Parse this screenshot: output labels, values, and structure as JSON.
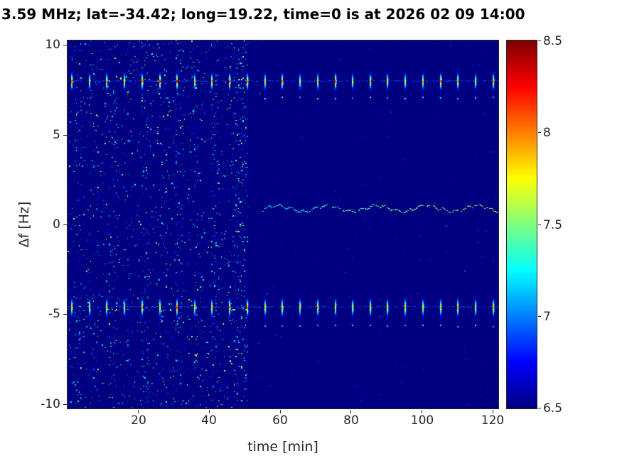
{
  "title": "3.59 MHz;  lat=-34.42; long=19.22, time=0 is at 2026 02 09 14:00",
  "chart_data": {
    "type": "heatmap",
    "title": "3.59 MHz;  lat=-34.42; long=19.22, time=0 is at 2026 02 09 14:00",
    "xlabel": "time [min]",
    "ylabel": "Δf [Hz]",
    "x_range": [
      0,
      121.5
    ],
    "y_range": [
      -10.25,
      10.25
    ],
    "xticks": [
      20,
      40,
      60,
      80,
      100,
      120
    ],
    "yticks": [
      10,
      5,
      0,
      -5,
      -10
    ],
    "xtick_labels": [
      "20",
      "40",
      "60",
      "80",
      "100",
      "120"
    ],
    "ytick_labels": [
      "10",
      "5",
      "0",
      "-5",
      "-10"
    ],
    "colorbar": {
      "min": 6.5,
      "max": 8.5,
      "ticks": [
        8.5,
        8,
        7.5,
        7,
        6.5
      ],
      "tick_labels": [
        "8.5",
        "8",
        "7.5",
        "7",
        "6.5"
      ],
      "colormap": "jet",
      "position": "right"
    },
    "background_value": 6.5,
    "grid": false,
    "noise": {
      "seed": 1337,
      "boundary_min": 50.7,
      "left_density": 0.08,
      "right_density": 0.011,
      "left_max_excess": 1.15,
      "right_max_excess": 0.4,
      "stripes": [
        {
          "t": 3,
          "w": 1.0,
          "mult": 2.0
        },
        {
          "t": 8,
          "w": 0.8,
          "mult": 1.6
        },
        {
          "t": 12.5,
          "w": 1.2,
          "mult": 2.0
        },
        {
          "t": 17,
          "w": 0.8,
          "mult": 1.5
        },
        {
          "t": 22,
          "w": 1.2,
          "mult": 2.0
        },
        {
          "t": 27,
          "w": 0.8,
          "mult": 1.6
        },
        {
          "t": 31.5,
          "w": 1.2,
          "mult": 2.2
        },
        {
          "t": 36,
          "w": 0.8,
          "mult": 1.5
        },
        {
          "t": 41.5,
          "w": 1.3,
          "mult": 2.2
        },
        {
          "t": 45.5,
          "w": 0.9,
          "mult": 1.8
        },
        {
          "t": 48.8,
          "w": 2.2,
          "mult": 3.0
        }
      ]
    },
    "bands": [
      {
        "name": "upper-pulse-band",
        "center_hz": 8.0,
        "pulse_half_hz": 0.6,
        "baseline_value": 6.9,
        "echo_hz": 7.1,
        "echo_after_min": 52,
        "pulses": [
          [
            1.2,
            8.35
          ],
          [
            6.2,
            7.95
          ],
          [
            11.1,
            8.2
          ],
          [
            16.1,
            8.0
          ],
          [
            21.0,
            8.3
          ],
          [
            26.0,
            8.45
          ],
          [
            30.9,
            8.4
          ],
          [
            35.9,
            8.0
          ],
          [
            40.8,
            8.15
          ],
          [
            45.8,
            8.45
          ],
          [
            50.7,
            8.3
          ],
          [
            55.7,
            7.95
          ],
          [
            60.6,
            8.2
          ],
          [
            65.6,
            7.9
          ],
          [
            70.5,
            8.0
          ],
          [
            75.5,
            8.4
          ],
          [
            80.4,
            7.9
          ],
          [
            85.4,
            8.1
          ],
          [
            90.3,
            8.0
          ],
          [
            95.3,
            7.9
          ],
          [
            100.2,
            8.0
          ],
          [
            105.2,
            8.3
          ],
          [
            110.1,
            8.1
          ],
          [
            115.1,
            7.9
          ],
          [
            120.0,
            8.2
          ]
        ]
      },
      {
        "name": "lower-pulse-band",
        "center_hz": -4.6,
        "pulse_half_hz": 0.65,
        "baseline_value": 6.9,
        "echo_hz": -5.6,
        "echo_after_min": 52,
        "pulses": [
          [
            1.2,
            8.0
          ],
          [
            6.2,
            7.9
          ],
          [
            11.1,
            8.05
          ],
          [
            16.1,
            7.85
          ],
          [
            21.0,
            8.1
          ],
          [
            26.0,
            8.0
          ],
          [
            30.9,
            8.3
          ],
          [
            35.9,
            7.9
          ],
          [
            40.8,
            8.0
          ],
          [
            45.8,
            8.2
          ],
          [
            50.7,
            8.25
          ],
          [
            55.7,
            7.9
          ],
          [
            60.6,
            8.05
          ],
          [
            65.6,
            7.95
          ],
          [
            70.5,
            8.1
          ],
          [
            75.5,
            8.0
          ],
          [
            80.4,
            7.9
          ],
          [
            85.4,
            8.05
          ],
          [
            90.3,
            8.0
          ],
          [
            95.3,
            8.1
          ],
          [
            100.2,
            7.95
          ],
          [
            105.2,
            8.0
          ],
          [
            110.1,
            8.15
          ],
          [
            115.1,
            7.9
          ],
          [
            120.0,
            8.05
          ]
        ]
      }
    ],
    "trace": {
      "name": "doppler-trace",
      "start_min": 55,
      "end_min": 121,
      "center_hz": 0.9,
      "wobble_hz": 0.16,
      "value_min": 7.2,
      "value_max": 7.7
    }
  }
}
